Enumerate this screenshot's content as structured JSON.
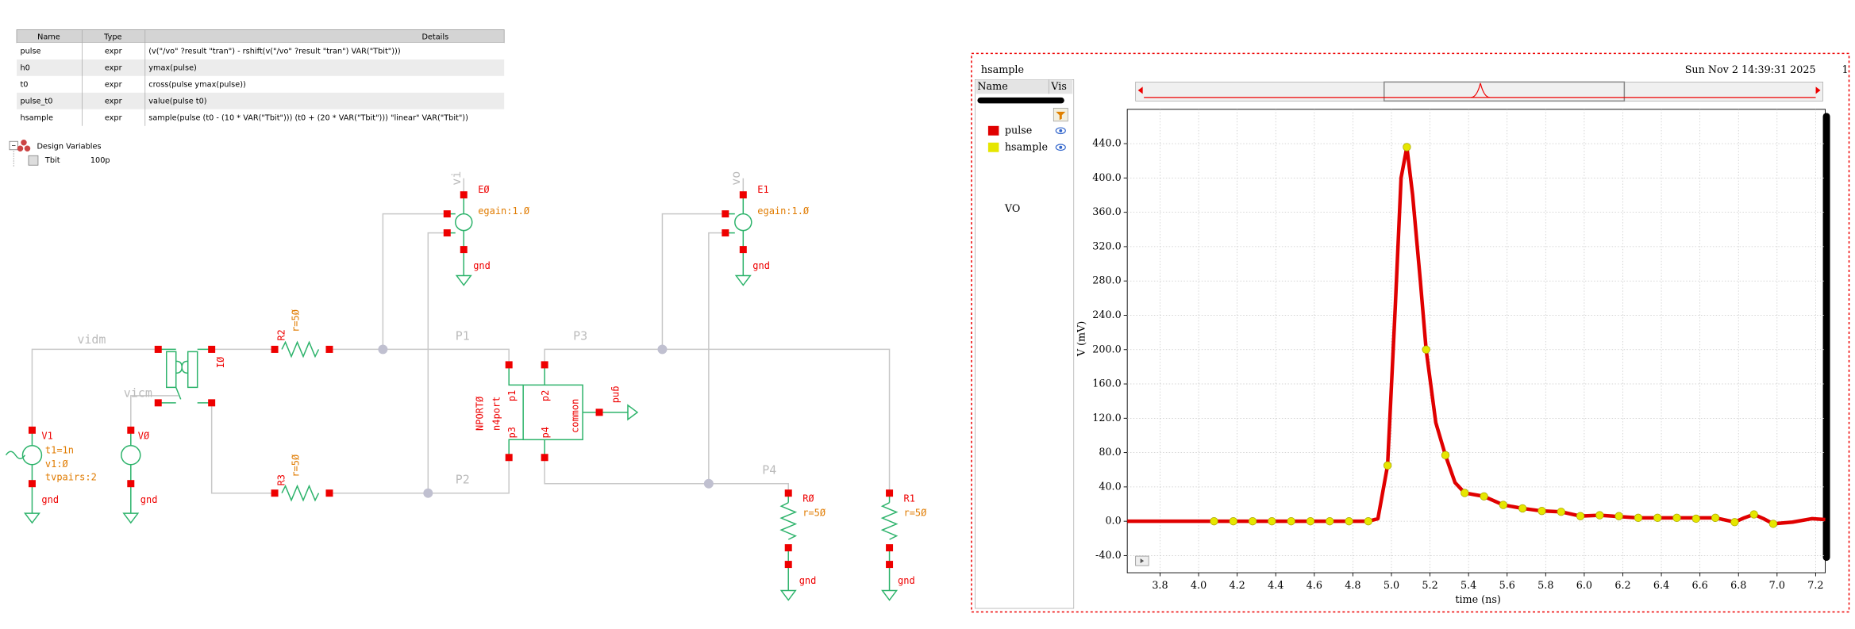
{
  "expressions": {
    "header": [
      "Name",
      "Type",
      "Details"
    ],
    "rows": [
      [
        "pulse",
        "expr",
        "(v(\"/vo\" ?result \"tran\") - rshift(v(\"/vo\" ?result \"tran\") VAR(\"Tbit\")))"
      ],
      [
        "h0",
        "expr",
        "ymax(pulse)"
      ],
      [
        "t0",
        "expr",
        "cross(pulse ymax(pulse))"
      ],
      [
        "pulse_t0",
        "expr",
        "value(pulse t0)"
      ],
      [
        "hsample",
        "expr",
        "sample(pulse (t0 - (10 * VAR(\"Tbit\"))) (t0 + (20 * VAR(\"Tbit\"))) \"linear\" VAR(\"Tbit\"))"
      ]
    ]
  },
  "design_variables": {
    "title": "Design Variables",
    "rows": [
      [
        "Tbit",
        "100p"
      ]
    ]
  },
  "schematic": {
    "labels": [
      "vi",
      "EØ",
      "egain:1.Ø",
      "gnd",
      "vo",
      "E1",
      "egain:1.Ø",
      "gnd",
      "vidm",
      "vicm",
      "IØ",
      "R2",
      "r=5Ø",
      "R3",
      "r=5Ø",
      "P1",
      "P3",
      "P2",
      "P4",
      "NPORTØ",
      "n4port",
      "p1",
      "p2",
      "p3",
      "p4",
      "common",
      "gnd",
      "V1",
      "t1=1n",
      "v1:Ø",
      "tvpairs:2",
      "gnd",
      "VØ",
      "gnd",
      "RØ",
      "r=5Ø",
      "gnd",
      "R1",
      "r=5Ø",
      "gnd"
    ]
  },
  "waveform_window": {
    "corner_label": "1",
    "legend_header": [
      "Name",
      "Vis"
    ]
  },
  "chart_data": {
    "type": "line",
    "title": "hsample",
    "subtitle": "Sun Nov 2 14:39:31 2025",
    "annotation": "VO",
    "x_label": "time (ns)",
    "y_label": "V (mV)",
    "xlim": [
      3.63,
      7.25
    ],
    "ylim": [
      -60,
      480
    ],
    "xticks": [
      3.8,
      {
        "value": 4,
        "label": "4.0"
      },
      4.2,
      4.4,
      4.6,
      4.8,
      {
        "value": 5,
        "label": "5.0"
      },
      5.2,
      5.4,
      5.6,
      5.8,
      {
        "value": 6,
        "label": "6.0"
      },
      6.2,
      6.4,
      6.6,
      6.8,
      {
        "value": 7,
        "label": "7.0"
      },
      7.2
    ],
    "yticks": [
      {
        "value": -40,
        "label": "-40.0"
      },
      {
        "value": 0,
        "label": "0.0"
      },
      {
        "value": 40,
        "label": "40.0"
      },
      {
        "value": 80,
        "label": "80.0"
      },
      {
        "value": 120,
        "label": "120.0"
      },
      {
        "value": 160,
        "label": "160.0"
      },
      {
        "value": 200,
        "label": "200.0"
      },
      {
        "value": 240,
        "label": "240.0"
      },
      {
        "value": 280,
        "label": "280.0"
      },
      {
        "value": 320,
        "label": "320.0"
      },
      {
        "value": 360,
        "label": "360.0"
      },
      {
        "value": 400,
        "label": "400.0"
      },
      {
        "value": 440,
        "label": "440.0"
      }
    ],
    "grid": true,
    "series": [
      {
        "name": "pulse",
        "color": "#e00000",
        "x": [
          3.63,
          4.0,
          4.5,
          4.88,
          4.93,
          4.98,
          5.02,
          5.05,
          5.08,
          5.11,
          5.15,
          5.18,
          5.23,
          5.28,
          5.33,
          5.38,
          5.43,
          5.48,
          5.58,
          5.68,
          5.78,
          5.88,
          5.98,
          6.08,
          6.28,
          6.48,
          6.68,
          6.78,
          6.83,
          6.88,
          6.93,
          6.98,
          7.08,
          7.18,
          7.25
        ],
        "values": [
          0,
          0,
          0,
          0,
          3,
          65,
          250,
          400,
          436,
          380,
          280,
          200,
          115,
          77,
          45,
          33,
          31,
          29,
          19,
          15,
          12,
          11,
          6,
          7,
          4,
          4,
          4,
          -1,
          4,
          8,
          3,
          -3,
          -1,
          3,
          2
        ]
      },
      {
        "name": "hsample",
        "color": "#e6e600",
        "x": [
          4.08,
          4.18,
          4.28,
          4.38,
          4.48,
          4.58,
          4.68,
          4.78,
          4.88,
          4.98,
          5.08,
          5.18,
          5.28,
          5.38,
          5.48,
          5.58,
          5.68,
          5.78,
          5.88,
          5.98,
          6.08,
          6.18,
          6.28,
          6.38,
          6.48,
          6.58,
          6.68,
          6.78,
          6.88,
          6.98
        ],
        "values": [
          0,
          0,
          0,
          0,
          0,
          0,
          0,
          0,
          0,
          65,
          436,
          200,
          77,
          33,
          29,
          19,
          15,
          12,
          11,
          6,
          7,
          6,
          4,
          4,
          4,
          3,
          4,
          -1,
          8,
          -3
        ]
      }
    ]
  }
}
